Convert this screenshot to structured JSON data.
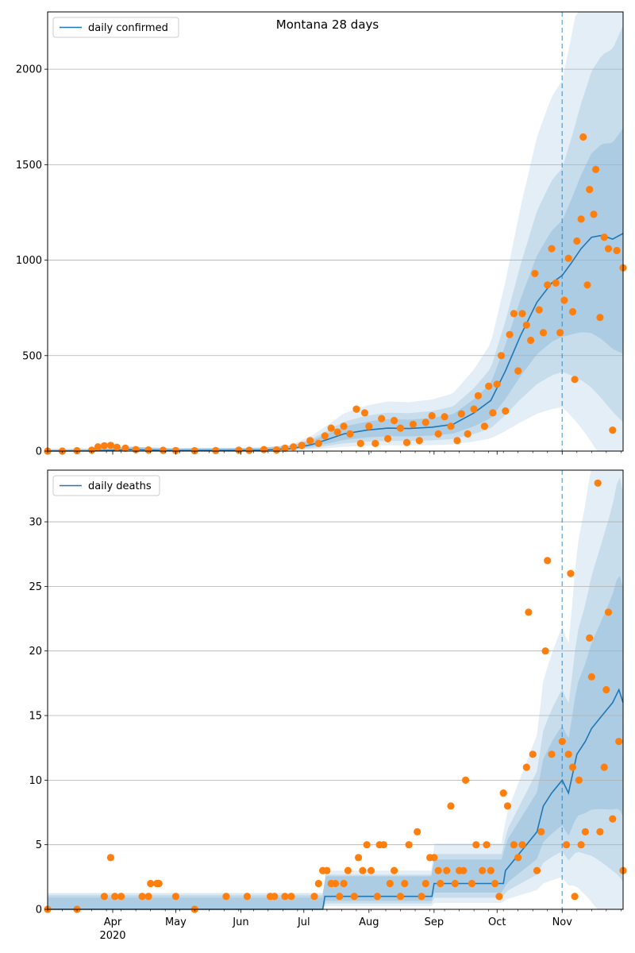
{
  "chart_data": [
    {
      "type": "line",
      "title": "Montana 28 days",
      "xlabel": "",
      "ylabel": "",
      "x_axis": "date",
      "xlim": [
        "2020-03-01",
        "2020-11-30"
      ],
      "ylim": [
        0,
        2300
      ],
      "yticks": [
        0,
        500,
        1000,
        1500,
        2000
      ],
      "xticks": [],
      "grid": "horizontal",
      "legend": "top-left",
      "forecast_start": "2020-11-01",
      "series": [
        {
          "name": "daily confirmed",
          "kind": "line",
          "color": "#1f77b4",
          "points": [
            [
              "2020-03-01",
              0
            ],
            [
              "2020-03-20",
              1
            ],
            [
              "2020-03-31",
              4
            ],
            [
              "2020-04-10",
              8
            ],
            [
              "2020-04-20",
              5
            ],
            [
              "2020-05-01",
              3
            ],
            [
              "2020-05-31",
              4
            ],
            [
              "2020-06-10",
              5
            ],
            [
              "2020-06-25",
              12
            ],
            [
              "2020-07-05",
              35
            ],
            [
              "2020-07-12",
              60
            ],
            [
              "2020-07-20",
              90
            ],
            [
              "2020-07-31",
              110
            ],
            [
              "2020-08-10",
              120
            ],
            [
              "2020-08-20",
              118
            ],
            [
              "2020-08-31",
              125
            ],
            [
              "2020-09-10",
              140
            ],
            [
              "2020-09-20",
              200
            ],
            [
              "2020-09-28",
              265
            ],
            [
              "2020-10-05",
              420
            ],
            [
              "2020-10-12",
              600
            ],
            [
              "2020-10-20",
              780
            ],
            [
              "2020-10-27",
              880
            ],
            [
              "2020-11-01",
              920
            ],
            [
              "2020-11-05",
              980
            ],
            [
              "2020-11-10",
              1060
            ],
            [
              "2020-11-15",
              1120
            ],
            [
              "2020-11-20",
              1130
            ],
            [
              "2020-11-25",
              1110
            ],
            [
              "2020-11-30",
              1140
            ]
          ]
        },
        {
          "name": "",
          "kind": "scatter",
          "color": "#ff7f0e",
          "points": [
            [
              "2020-03-01",
              0
            ],
            [
              "2020-03-08",
              0
            ],
            [
              "2020-03-15",
              2
            ],
            [
              "2020-03-22",
              5
            ],
            [
              "2020-03-25",
              22
            ],
            [
              "2020-03-28",
              28
            ],
            [
              "2020-03-31",
              30
            ],
            [
              "2020-04-03",
              20
            ],
            [
              "2020-04-07",
              15
            ],
            [
              "2020-04-12",
              8
            ],
            [
              "2020-04-18",
              6
            ],
            [
              "2020-04-25",
              4
            ],
            [
              "2020-05-01",
              3
            ],
            [
              "2020-05-10",
              2
            ],
            [
              "2020-05-20",
              3
            ],
            [
              "2020-05-31",
              5
            ],
            [
              "2020-06-05",
              4
            ],
            [
              "2020-06-12",
              8
            ],
            [
              "2020-06-18",
              6
            ],
            [
              "2020-06-22",
              15
            ],
            [
              "2020-06-26",
              22
            ],
            [
              "2020-06-30",
              30
            ],
            [
              "2020-07-04",
              55
            ],
            [
              "2020-07-08",
              40
            ],
            [
              "2020-07-11",
              80
            ],
            [
              "2020-07-14",
              120
            ],
            [
              "2020-07-17",
              100
            ],
            [
              "2020-07-20",
              130
            ],
            [
              "2020-07-23",
              90
            ],
            [
              "2020-07-26",
              220
            ],
            [
              "2020-07-28",
              40
            ],
            [
              "2020-07-30",
              200
            ],
            [
              "2020-08-01",
              130
            ],
            [
              "2020-08-04",
              40
            ],
            [
              "2020-08-07",
              170
            ],
            [
              "2020-08-10",
              65
            ],
            [
              "2020-08-13",
              160
            ],
            [
              "2020-08-16",
              120
            ],
            [
              "2020-08-19",
              45
            ],
            [
              "2020-08-22",
              140
            ],
            [
              "2020-08-25",
              55
            ],
            [
              "2020-08-28",
              150
            ],
            [
              "2020-08-31",
              185
            ],
            [
              "2020-09-03",
              90
            ],
            [
              "2020-09-06",
              180
            ],
            [
              "2020-09-09",
              130
            ],
            [
              "2020-09-12",
              55
            ],
            [
              "2020-09-14",
              195
            ],
            [
              "2020-09-17",
              90
            ],
            [
              "2020-09-20",
              220
            ],
            [
              "2020-09-22",
              290
            ],
            [
              "2020-09-25",
              130
            ],
            [
              "2020-09-27",
              340
            ],
            [
              "2020-09-29",
              200
            ],
            [
              "2020-10-01",
              350
            ],
            [
              "2020-10-03",
              500
            ],
            [
              "2020-10-05",
              210
            ],
            [
              "2020-10-07",
              610
            ],
            [
              "2020-10-09",
              720
            ],
            [
              "2020-10-11",
              420
            ],
            [
              "2020-10-13",
              720
            ],
            [
              "2020-10-15",
              660
            ],
            [
              "2020-10-17",
              580
            ],
            [
              "2020-10-19",
              930
            ],
            [
              "2020-10-21",
              740
            ],
            [
              "2020-10-23",
              620
            ],
            [
              "2020-10-25",
              870
            ],
            [
              "2020-10-27",
              1060
            ],
            [
              "2020-10-29",
              880
            ],
            [
              "2020-10-31",
              620
            ],
            [
              "2020-11-02",
              790
            ],
            [
              "2020-11-04",
              1010
            ],
            [
              "2020-11-06",
              730
            ],
            [
              "2020-11-07",
              375
            ],
            [
              "2020-11-08",
              1100
            ],
            [
              "2020-11-10",
              1215
            ],
            [
              "2020-11-11",
              1645
            ],
            [
              "2020-11-13",
              870
            ],
            [
              "2020-11-14",
              1370
            ],
            [
              "2020-11-16",
              1240
            ],
            [
              "2020-11-17",
              1475
            ],
            [
              "2020-11-19",
              700
            ],
            [
              "2020-11-21",
              1120
            ],
            [
              "2020-11-23",
              1060
            ],
            [
              "2020-11-25",
              110
            ],
            [
              "2020-11-27",
              1050
            ],
            [
              "2020-11-30",
              960
            ]
          ]
        }
      ]
    },
    {
      "type": "line",
      "title": "",
      "xlabel": "",
      "ylabel": "",
      "x_axis": "date",
      "xlim": [
        "2020-03-01",
        "2020-11-30"
      ],
      "ylim": [
        0,
        34
      ],
      "yticks": [
        0,
        5,
        10,
        15,
        20,
        25,
        30
      ],
      "xticks": [
        {
          "date": "2020-04-01",
          "label": "Apr",
          "sublabel": "2020"
        },
        {
          "date": "2020-05-01",
          "label": "May"
        },
        {
          "date": "2020-06-01",
          "label": "Jun"
        },
        {
          "date": "2020-07-01",
          "label": "Jul"
        },
        {
          "date": "2020-08-01",
          "label": "Aug"
        },
        {
          "date": "2020-09-01",
          "label": "Sep"
        },
        {
          "date": "2020-10-01",
          "label": "Oct"
        },
        {
          "date": "2020-11-01",
          "label": "Nov"
        }
      ],
      "grid": "horizontal",
      "legend": "top-left",
      "forecast_start": "2020-11-01",
      "series": [
        {
          "name": "daily deaths",
          "kind": "line",
          "color": "#1f77b4",
          "points": [
            [
              "2020-03-01",
              0
            ],
            [
              "2020-07-10",
              0
            ],
            [
              "2020-07-11",
              1
            ],
            [
              "2020-08-31",
              1
            ],
            [
              "2020-09-01",
              2
            ],
            [
              "2020-10-04",
              2
            ],
            [
              "2020-10-05",
              3
            ],
            [
              "2020-10-10",
              4
            ],
            [
              "2020-10-15",
              5
            ],
            [
              "2020-10-20",
              6
            ],
            [
              "2020-10-23",
              8
            ],
            [
              "2020-10-27",
              9
            ],
            [
              "2020-11-01",
              10
            ],
            [
              "2020-11-04",
              9
            ],
            [
              "2020-11-08",
              12
            ],
            [
              "2020-11-12",
              13
            ],
            [
              "2020-11-15",
              14
            ],
            [
              "2020-11-20",
              15
            ],
            [
              "2020-11-25",
              16
            ],
            [
              "2020-11-28",
              17
            ],
            [
              "2020-11-30",
              16
            ]
          ]
        },
        {
          "name": "",
          "kind": "scatter",
          "color": "#ff7f0e",
          "points": [
            [
              "2020-03-01",
              0
            ],
            [
              "2020-03-15",
              0
            ],
            [
              "2020-03-28",
              1
            ],
            [
              "2020-03-31",
              4
            ],
            [
              "2020-04-02",
              1
            ],
            [
              "2020-04-05",
              1
            ],
            [
              "2020-04-15",
              1
            ],
            [
              "2020-04-18",
              1
            ],
            [
              "2020-04-19",
              2
            ],
            [
              "2020-04-22",
              2
            ],
            [
              "2020-04-23",
              2
            ],
            [
              "2020-05-01",
              1
            ],
            [
              "2020-05-10",
              0
            ],
            [
              "2020-05-25",
              1
            ],
            [
              "2020-06-04",
              1
            ],
            [
              "2020-06-15",
              1
            ],
            [
              "2020-06-17",
              1
            ],
            [
              "2020-06-22",
              1
            ],
            [
              "2020-06-25",
              1
            ],
            [
              "2020-07-06",
              1
            ],
            [
              "2020-07-08",
              2
            ],
            [
              "2020-07-10",
              3
            ],
            [
              "2020-07-12",
              3
            ],
            [
              "2020-07-14",
              2
            ],
            [
              "2020-07-16",
              2
            ],
            [
              "2020-07-18",
              1
            ],
            [
              "2020-07-20",
              2
            ],
            [
              "2020-07-22",
              3
            ],
            [
              "2020-07-25",
              1
            ],
            [
              "2020-07-27",
              4
            ],
            [
              "2020-07-29",
              3
            ],
            [
              "2020-07-31",
              5
            ],
            [
              "2020-08-02",
              3
            ],
            [
              "2020-08-05",
              1
            ],
            [
              "2020-08-06",
              5
            ],
            [
              "2020-08-08",
              5
            ],
            [
              "2020-08-11",
              2
            ],
            [
              "2020-08-13",
              3
            ],
            [
              "2020-08-16",
              1
            ],
            [
              "2020-08-18",
              2
            ],
            [
              "2020-08-20",
              5
            ],
            [
              "2020-08-24",
              6
            ],
            [
              "2020-08-26",
              1
            ],
            [
              "2020-08-28",
              2
            ],
            [
              "2020-08-30",
              4
            ],
            [
              "2020-09-01",
              4
            ],
            [
              "2020-09-03",
              3
            ],
            [
              "2020-09-04",
              2
            ],
            [
              "2020-09-07",
              3
            ],
            [
              "2020-09-09",
              8
            ],
            [
              "2020-09-11",
              2
            ],
            [
              "2020-09-13",
              3
            ],
            [
              "2020-09-15",
              3
            ],
            [
              "2020-09-16",
              10
            ],
            [
              "2020-09-19",
              2
            ],
            [
              "2020-09-21",
              5
            ],
            [
              "2020-09-24",
              3
            ],
            [
              "2020-09-26",
              5
            ],
            [
              "2020-09-28",
              3
            ],
            [
              "2020-09-30",
              2
            ],
            [
              "2020-10-02",
              1
            ],
            [
              "2020-10-04",
              9
            ],
            [
              "2020-10-06",
              8
            ],
            [
              "2020-10-09",
              5
            ],
            [
              "2020-10-11",
              4
            ],
            [
              "2020-10-13",
              5
            ],
            [
              "2020-10-15",
              11
            ],
            [
              "2020-10-16",
              23
            ],
            [
              "2020-10-18",
              12
            ],
            [
              "2020-10-20",
              3
            ],
            [
              "2020-10-22",
              6
            ],
            [
              "2020-10-24",
              20
            ],
            [
              "2020-10-25",
              27
            ],
            [
              "2020-10-27",
              12
            ],
            [
              "2020-11-01",
              13
            ],
            [
              "2020-11-03",
              5
            ],
            [
              "2020-11-04",
              12
            ],
            [
              "2020-11-05",
              26
            ],
            [
              "2020-11-06",
              11
            ],
            [
              "2020-11-07",
              1
            ],
            [
              "2020-11-09",
              10
            ],
            [
              "2020-11-10",
              5
            ],
            [
              "2020-11-12",
              6
            ],
            [
              "2020-11-14",
              21
            ],
            [
              "2020-11-15",
              18
            ],
            [
              "2020-11-18",
              33
            ],
            [
              "2020-11-19",
              6
            ],
            [
              "2020-11-21",
              11
            ],
            [
              "2020-11-22",
              17
            ],
            [
              "2020-11-23",
              23
            ],
            [
              "2020-11-25",
              7
            ],
            [
              "2020-11-28",
              13
            ],
            [
              "2020-11-30",
              3
            ]
          ]
        }
      ]
    }
  ]
}
